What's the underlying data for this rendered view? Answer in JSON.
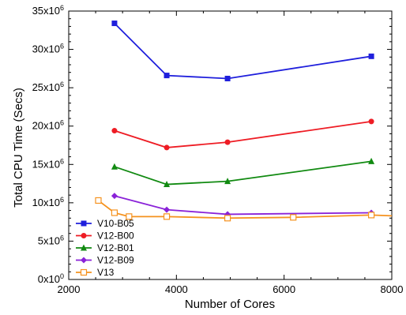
{
  "chart_data": {
    "type": "line",
    "title": "",
    "xlabel": "Number of Cores",
    "ylabel": "Total CPU Time (Secs)",
    "xlim": [
      2000,
      8000
    ],
    "ylim": [
      0,
      35000000
    ],
    "x_ticks": [
      2000,
      4000,
      6000,
      8000
    ],
    "x_tick_labels": [
      "2000",
      "4000",
      "6000",
      "8000"
    ],
    "y_ticks": [
      0,
      5000000,
      10000000,
      15000000,
      20000000,
      25000000,
      30000000,
      35000000
    ],
    "y_tick_labels": [
      {
        "base": "0x10",
        "exp": "0"
      },
      {
        "base": "5x10",
        "exp": "6"
      },
      {
        "base": "10x10",
        "exp": "6"
      },
      {
        "base": "15x10",
        "exp": "6"
      },
      {
        "base": "20x10",
        "exp": "6"
      },
      {
        "base": "25x10",
        "exp": "6"
      },
      {
        "base": "30x10",
        "exp": "6"
      },
      {
        "base": "35x10",
        "exp": "6"
      }
    ],
    "grid": false,
    "legend_position": "bottom-left",
    "series": [
      {
        "name": "V10-B05",
        "color": "#1f1fdc",
        "marker": "square",
        "x": [
          2850,
          3820,
          4950,
          7620
        ],
        "y": [
          33400000,
          26600000,
          26200000,
          29100000
        ]
      },
      {
        "name": "V12-B00",
        "color": "#ee1c24",
        "marker": "circle",
        "x": [
          2850,
          3820,
          4950,
          7620
        ],
        "y": [
          19400000,
          17200000,
          17900000,
          20600000
        ]
      },
      {
        "name": "V12-B01",
        "color": "#118a11",
        "marker": "triangle",
        "x": [
          2850,
          3820,
          4950,
          7620
        ],
        "y": [
          14700000,
          12400000,
          12800000,
          15400000
        ]
      },
      {
        "name": "V12-B09",
        "color": "#8a22d8",
        "marker": "diamond",
        "x": [
          2850,
          3820,
          4950,
          7620
        ],
        "y": [
          10900000,
          9100000,
          8500000,
          8700000
        ]
      },
      {
        "name": "V13",
        "color": "#f5921e",
        "marker": "open-square",
        "x": [
          2550,
          2850,
          3120,
          3820,
          4950,
          6170,
          7620,
          8000
        ],
        "y": [
          10300000,
          8700000,
          8200000,
          8200000,
          8000000,
          8100000,
          8400000,
          8300000
        ]
      }
    ]
  }
}
